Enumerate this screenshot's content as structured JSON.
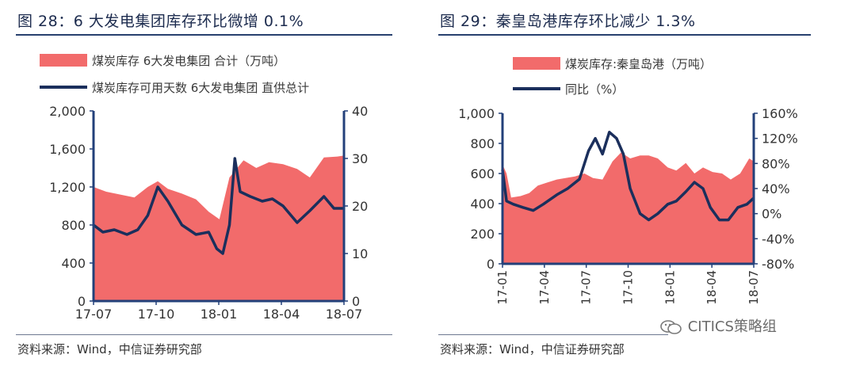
{
  "colors": {
    "area": "#f26b6b",
    "line": "#1b2f5c",
    "axis": "#23407a",
    "text": "#1c2b4e"
  },
  "left": {
    "title": "图 28：6 大发电集团库存环比微增 0.1%",
    "source": "资料来源：Wind，中信证券研究部"
  },
  "right": {
    "title": "图 29：秦皇岛港库存环比减少 1.3%",
    "source": "资料来源：Wind，中信证券研究部"
  },
  "watermark": {
    "text": "CITICS策略组",
    "icon": "wechat-icon"
  },
  "chart_data": [
    {
      "type": "area",
      "title": "图 28：6 大发电集团库存环比微增 0.1%",
      "x_tick_labels": [
        "17-07",
        "17-10",
        "18-01",
        "18-04",
        "18-07"
      ],
      "y_left": {
        "lim": [
          0,
          2000
        ],
        "ticks": [
          "0",
          "400",
          "800",
          "1,200",
          "1,600",
          "2,000"
        ]
      },
      "y_right": {
        "lim": [
          0,
          40
        ],
        "ticks": [
          "0",
          "10",
          "20",
          "30",
          "40"
        ]
      },
      "series": [
        {
          "name": "煤炭库存 6大发电集团 合计（万吨）",
          "kind": "area",
          "axis": "left",
          "x": [
            "2017-07-01",
            "2017-07-20",
            "2017-08-10",
            "2017-08-31",
            "2017-09-20",
            "2017-10-05",
            "2017-10-20",
            "2017-11-10",
            "2017-12-01",
            "2017-12-20",
            "2018-01-05",
            "2018-01-20",
            "2018-02-10",
            "2018-03-01",
            "2018-03-20",
            "2018-04-10",
            "2018-05-01",
            "2018-05-20",
            "2018-06-10",
            "2018-06-30",
            "2018-07-10"
          ],
          "values": [
            1200,
            1150,
            1120,
            1090,
            1200,
            1260,
            1180,
            1130,
            1070,
            940,
            860,
            1300,
            1480,
            1400,
            1460,
            1440,
            1390,
            1300,
            1510,
            1520,
            1530
          ]
        },
        {
          "name": "煤炭库存可用天数 6大发电集团 直供总计",
          "kind": "line",
          "axis": "right",
          "x": [
            "2017-07-01",
            "2017-07-15",
            "2017-08-01",
            "2017-08-20",
            "2017-09-05",
            "2017-09-20",
            "2017-10-05",
            "2017-10-20",
            "2017-11-10",
            "2017-12-01",
            "2017-12-20",
            "2018-01-01",
            "2018-01-10",
            "2018-01-20",
            "2018-01-28",
            "2018-02-05",
            "2018-02-20",
            "2018-03-10",
            "2018-03-25",
            "2018-04-10",
            "2018-05-01",
            "2018-05-20",
            "2018-06-10",
            "2018-06-25",
            "2018-07-10"
          ],
          "values": [
            16,
            14.5,
            15,
            14,
            15,
            18,
            24,
            21,
            16,
            14,
            14.5,
            11,
            10,
            16,
            30,
            23,
            22,
            21,
            21.5,
            20,
            16.5,
            19,
            22,
            19.5,
            19.5
          ]
        }
      ]
    },
    {
      "type": "area",
      "title": "图 29：秦皇岛港库存环比减少 1.3%",
      "x_tick_labels": [
        "17-01",
        "17-04",
        "17-07",
        "17-10",
        "18-01",
        "18-04",
        "18-07"
      ],
      "y_left": {
        "lim": [
          0,
          1000
        ],
        "ticks": [
          "0",
          "200",
          "400",
          "600",
          "800",
          "1,000"
        ]
      },
      "y_right": {
        "lim": [
          -80,
          160
        ],
        "ticks": [
          "-80%",
          "-40%",
          "0%",
          "40%",
          "80%",
          "120%",
          "160%"
        ]
      },
      "series": [
        {
          "name": "煤炭库存:秦皇岛港（万吨）",
          "kind": "area",
          "axis": "left",
          "x": [
            "2017-01-01",
            "2017-01-10",
            "2017-01-20",
            "2017-02-10",
            "2017-03-01",
            "2017-03-20",
            "2017-04-10",
            "2017-05-01",
            "2017-05-20",
            "2017-06-10",
            "2017-07-01",
            "2017-07-20",
            "2017-08-10",
            "2017-09-01",
            "2017-09-20",
            "2017-10-10",
            "2017-11-01",
            "2017-11-20",
            "2017-12-10",
            "2018-01-01",
            "2018-01-20",
            "2018-02-10",
            "2018-03-01",
            "2018-03-20",
            "2018-04-10",
            "2018-05-01",
            "2018-05-20",
            "2018-06-10",
            "2018-06-30",
            "2018-07-10"
          ],
          "values": [
            660,
            600,
            440,
            450,
            470,
            520,
            540,
            560,
            570,
            580,
            600,
            570,
            560,
            680,
            740,
            700,
            720,
            720,
            700,
            640,
            620,
            670,
            600,
            640,
            610,
            600,
            560,
            600,
            700,
            680
          ]
        },
        {
          "name": "同比（%）",
          "kind": "line",
          "axis": "right",
          "x": [
            "2017-01-01",
            "2017-01-10",
            "2017-01-25",
            "2017-02-15",
            "2017-03-10",
            "2017-04-01",
            "2017-05-01",
            "2017-05-25",
            "2017-06-20",
            "2017-07-10",
            "2017-07-25",
            "2017-08-10",
            "2017-08-25",
            "2017-09-10",
            "2017-09-25",
            "2017-10-10",
            "2017-11-01",
            "2017-11-20",
            "2017-12-10",
            "2018-01-01",
            "2018-01-20",
            "2018-02-10",
            "2018-03-01",
            "2018-03-20",
            "2018-04-05",
            "2018-04-25",
            "2018-05-15",
            "2018-06-05",
            "2018-06-25",
            "2018-07-10"
          ],
          "values": [
            70,
            20,
            15,
            10,
            5,
            15,
            30,
            40,
            55,
            100,
            120,
            95,
            130,
            120,
            95,
            40,
            0,
            -10,
            0,
            15,
            20,
            35,
            50,
            40,
            10,
            -10,
            -10,
            10,
            15,
            25
          ]
        }
      ]
    }
  ]
}
